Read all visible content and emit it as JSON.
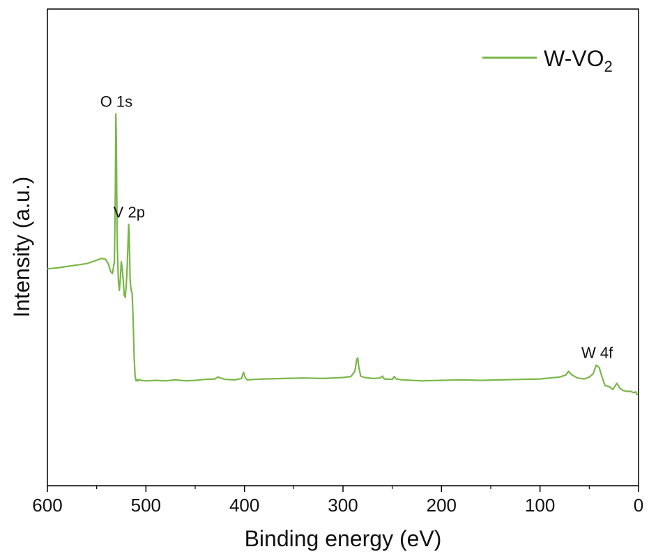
{
  "chart_data": {
    "type": "line",
    "title": "",
    "xlabel": "Binding energy (eV)",
    "ylabel": "Intensity (a.u.)",
    "xlim": [
      600,
      0
    ],
    "x_reversed": true,
    "x_ticks": [
      600,
      500,
      400,
      300,
      200,
      100,
      0
    ],
    "x_tick_labels": [
      "600",
      "500",
      "400",
      "300",
      "200",
      "100",
      "0"
    ],
    "y_ticks_shown": false,
    "ylim": [
      0,
      100
    ],
    "legend": {
      "position": "top-right",
      "entries": [
        {
          "name": "W-VO",
          "subscript": "2"
        }
      ]
    },
    "annotations": [
      {
        "text": "O 1s",
        "x": 530
      },
      {
        "text": "V 2p",
        "x": 517
      },
      {
        "text": "W 4f",
        "x": 42
      }
    ],
    "series": [
      {
        "name": "W-VO2",
        "color": "#7ab648",
        "x": [
          600,
          590,
          580,
          570,
          560,
          550,
          545,
          541,
          538,
          536,
          534,
          532,
          531,
          530.5,
          530,
          529.5,
          529,
          528,
          527,
          526,
          525,
          524,
          523,
          522,
          521,
          520,
          519,
          518,
          517.5,
          517,
          516.5,
          516,
          515,
          514,
          513,
          512,
          511,
          510,
          509,
          508,
          507,
          505,
          500,
          490,
          480,
          470,
          460,
          450,
          440,
          430,
          427,
          420,
          410,
          403,
          401,
          399,
          397,
          390,
          380,
          360,
          340,
          320,
          300,
          292,
          288,
          286,
          285,
          284,
          282,
          278,
          270,
          262,
          260,
          258,
          250,
          248,
          246,
          240,
          230,
          220,
          200,
          180,
          160,
          140,
          120,
          100,
          90,
          80,
          74,
          71,
          68,
          62,
          55,
          50,
          46,
          43,
          40,
          37,
          34,
          30,
          26,
          22,
          19,
          16,
          12,
          8,
          5,
          3,
          1
        ],
        "y": [
          45.5,
          45.7,
          46.0,
          46.3,
          46.6,
          47.3,
          47.7,
          47.5,
          46.5,
          45.0,
          44.5,
          47.0,
          62.0,
          78.0,
          72.0,
          60.0,
          50.0,
          43.0,
          41.0,
          43.5,
          47.0,
          45.5,
          43.0,
          40.0,
          39.5,
          42.0,
          46.0,
          52.0,
          54.8,
          53.0,
          48.0,
          43.0,
          41.0,
          40.5,
          35.0,
          27.0,
          23.0,
          22.0,
          22.2,
          22.0,
          22.3,
          22.1,
          22.0,
          22.1,
          22.0,
          22.2,
          22.0,
          22.1,
          22.3,
          22.4,
          22.8,
          22.3,
          22.2,
          22.5,
          23.8,
          22.6,
          22.2,
          22.3,
          22.4,
          22.5,
          22.6,
          22.5,
          22.7,
          22.9,
          24.0,
          26.5,
          26.8,
          25.0,
          23.0,
          22.7,
          22.5,
          22.6,
          23.0,
          22.4,
          22.3,
          22.9,
          22.4,
          22.2,
          22.1,
          22.0,
          22.1,
          22.2,
          22.1,
          22.2,
          22.3,
          22.4,
          22.6,
          22.8,
          23.2,
          24.0,
          23.3,
          22.6,
          22.4,
          22.8,
          23.5,
          25.3,
          24.8,
          22.8,
          21.0,
          20.8,
          20.2,
          21.5,
          20.5,
          20.0,
          19.8,
          19.8,
          19.5,
          19.7,
          19.0
        ]
      }
    ]
  }
}
